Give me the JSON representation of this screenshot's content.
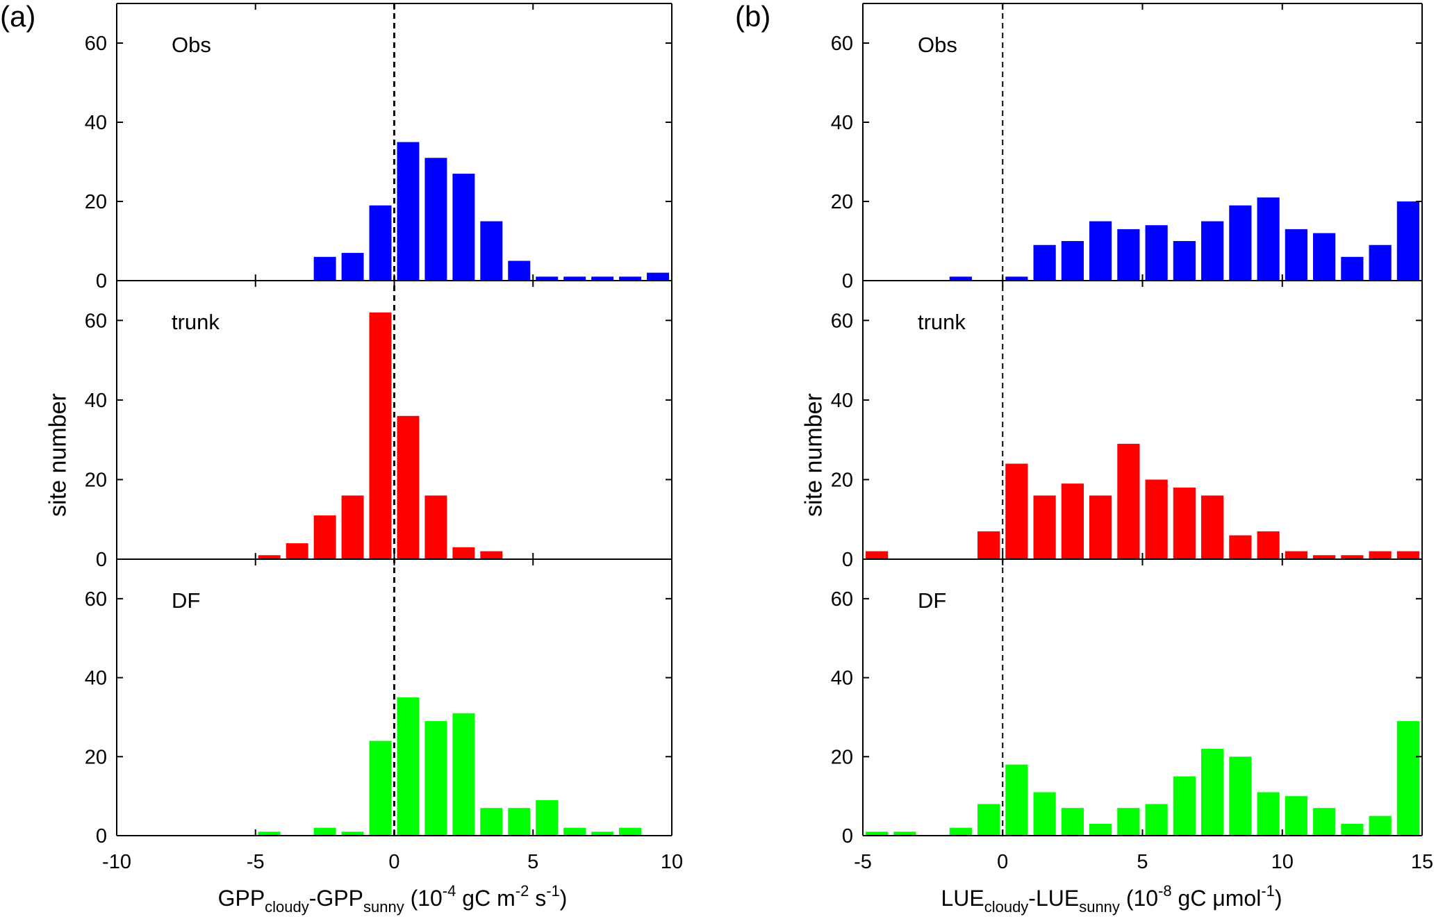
{
  "figure": {
    "panel_a_label": "(a)",
    "panel_b_label": "(b)",
    "ylabel": "site number",
    "a_xlabel": {
      "v1": "GPP",
      "s1": "cloudy",
      "dash": "-",
      "v2": "GPP",
      "s2": "sunny",
      "u1": " (10",
      "e1": "-4",
      "u2": " gC m",
      "e2": "-2",
      "u3": " s",
      "e3": "-1",
      "u4": ")"
    },
    "b_xlabel": {
      "v1": "LUE",
      "s1": "cloudy",
      "dash": "-",
      "v2": "LUE",
      "s2": "sunny",
      "u1": " (10",
      "e1": "-8",
      "u2": " gC μmol",
      "e2": "-1",
      "u3": ")"
    }
  },
  "colors": {
    "Obs": "#0000ff",
    "trunk": "#ff0000",
    "DF": "#00ff00",
    "axis": "#000000"
  },
  "chart_data": [
    {
      "type": "bar",
      "panel": "(a)",
      "xlabel": "GPPcloudy-GPPsunny (10-4 gC m-2 s-1)",
      "ylabel": "site number",
      "xlim": [
        -10,
        10
      ],
      "ylim": [
        0,
        70
      ],
      "xticks": [
        "-10",
        "-5",
        "0",
        "5",
        "10"
      ],
      "yticks": [
        "0",
        "20",
        "40",
        "60"
      ],
      "bin_width": 1,
      "reference_line": {
        "x": 0,
        "style": "dashed"
      },
      "x": [
        -9.5,
        -8.5,
        -7.5,
        -6.5,
        -5.5,
        -4.5,
        -3.5,
        -2.5,
        -1.5,
        -0.5,
        0.5,
        1.5,
        2.5,
        3.5,
        4.5,
        5.5,
        6.5,
        7.5,
        8.5,
        9.5
      ],
      "series": [
        {
          "name": "Obs",
          "values": [
            0,
            0,
            0,
            0,
            0,
            0,
            0,
            6,
            7,
            19,
            35,
            31,
            27,
            15,
            5,
            1,
            1,
            1,
            1,
            2
          ]
        },
        {
          "name": "trunk",
          "values": [
            0,
            0,
            0,
            0,
            0,
            1,
            4,
            11,
            16,
            62,
            36,
            16,
            3,
            2,
            0,
            0,
            0,
            0,
            0,
            0
          ]
        },
        {
          "name": "DF",
          "values": [
            0,
            0,
            0,
            0,
            0,
            1,
            0,
            2,
            1,
            24,
            35,
            29,
            31,
            7,
            7,
            9,
            2,
            1,
            2,
            0
          ]
        }
      ]
    },
    {
      "type": "bar",
      "panel": "(b)",
      "xlabel": "LUEcloudy-LUEsunny (10-8 gC μmol-1)",
      "ylabel": "site number",
      "xlim": [
        -5,
        15
      ],
      "ylim": [
        0,
        70
      ],
      "xticks": [
        "-5",
        "0",
        "5",
        "10",
        "15"
      ],
      "yticks": [
        "0",
        "20",
        "40",
        "60"
      ],
      "bin_width": 1,
      "reference_line": {
        "x": 0,
        "style": "dashed"
      },
      "x": [
        -4.5,
        -3.5,
        -2.5,
        -1.5,
        -0.5,
        0.5,
        1.5,
        2.5,
        3.5,
        4.5,
        5.5,
        6.5,
        7.5,
        8.5,
        9.5,
        10.5,
        11.5,
        12.5,
        13.5,
        14.5
      ],
      "series": [
        {
          "name": "Obs",
          "values": [
            0,
            0,
            0,
            1,
            0,
            1,
            9,
            10,
            15,
            13,
            14,
            10,
            15,
            19,
            21,
            13,
            12,
            6,
            9,
            20
          ]
        },
        {
          "name": "trunk",
          "values": [
            2,
            0,
            0,
            0,
            7,
            24,
            16,
            19,
            16,
            29,
            20,
            18,
            16,
            6,
            7,
            2,
            1,
            1,
            2,
            2
          ]
        },
        {
          "name": "DF",
          "values": [
            1,
            1,
            0,
            2,
            8,
            18,
            11,
            7,
            3,
            7,
            8,
            15,
            22,
            20,
            11,
            10,
            7,
            3,
            5,
            29
          ]
        }
      ]
    }
  ]
}
